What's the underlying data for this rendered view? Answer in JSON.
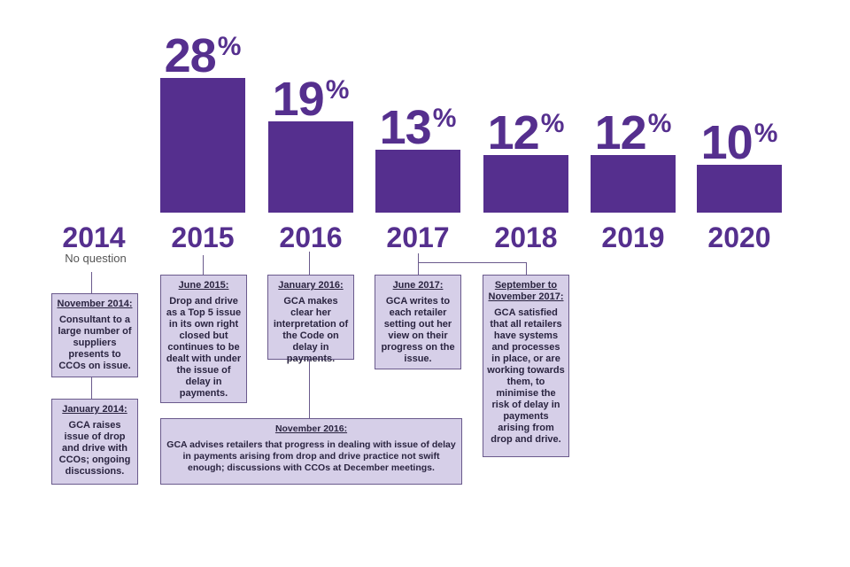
{
  "chart_data": {
    "type": "bar",
    "title": "",
    "xlabel": "",
    "ylabel": "",
    "categories": [
      "2014",
      "2015",
      "2016",
      "2017",
      "2018",
      "2019",
      "2020"
    ],
    "values": [
      null,
      28,
      19,
      13,
      12,
      12,
      10
    ],
    "value_labels": [
      "",
      "28",
      "19",
      "13",
      "12",
      "12",
      "10"
    ],
    "value_suffix": "%",
    "ylim": [
      0,
      28
    ],
    "annotations": {
      "no_question": "No question"
    }
  },
  "events": [
    {
      "id": "nov2014",
      "title": "November 2014:",
      "body": "Consultant to a large number of suppliers presents to CCOs on issue."
    },
    {
      "id": "jan2014",
      "title": "January 2014:",
      "body": "GCA raises issue of drop and drive with CCOs; ongoing discussions."
    },
    {
      "id": "jun2015",
      "title": "June 2015:",
      "body": "Drop and drive as a Top 5 issue in its own right closed but continues to be dealt with under the issue of delay in payments."
    },
    {
      "id": "jan2016",
      "title": "January 2016:",
      "body": "GCA makes clear her interpretation of the Code on delay in payments."
    },
    {
      "id": "nov2016",
      "title": "November 2016:",
      "body": "GCA advises retailers that progress in dealing with issue of delay in payments arising from drop and drive practice not swift enough; discussions with CCOs at December meetings."
    },
    {
      "id": "jun2017",
      "title": "June 2017:",
      "body": "GCA writes to each retailer setting out her view on their progress on the issue."
    },
    {
      "id": "sepnov2017",
      "title": "September to November 2017:",
      "body": "GCA satisfied that all retailers have systems and processes in place, or are working towards them, to minimise the risk of delay in payments arising from drop and drive."
    }
  ],
  "colors": {
    "bar": "#552f8e",
    "box_fill": "#d6cfe8",
    "box_border": "#6a5a8c"
  }
}
